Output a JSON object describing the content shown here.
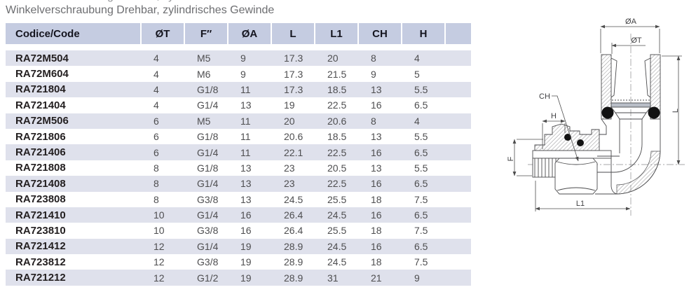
{
  "title": "Winkelverschraubung Drehbar, zylindrisches Gewinde",
  "table": {
    "headers": [
      "Codice/Code",
      "ØT",
      "F″",
      "ØA",
      "L",
      "L1",
      "CH",
      "H",
      ""
    ],
    "rows": [
      {
        "code": "RA72M504",
        "values": [
          "4",
          "M5",
          "9",
          "17.3",
          "20",
          "8",
          "4"
        ]
      },
      {
        "code": "RA72M604",
        "values": [
          "4",
          "M6",
          "9",
          "17.3",
          "21.5",
          "9",
          "5"
        ]
      },
      {
        "code": "RA721804",
        "values": [
          "4",
          "G1/8",
          "11",
          "17.3",
          "18.5",
          "13",
          "5.5"
        ]
      },
      {
        "code": "RA721404",
        "values": [
          "4",
          "G1/4",
          "13",
          "19",
          "22.5",
          "16",
          "6.5"
        ]
      },
      {
        "code": "RA72M506",
        "values": [
          "6",
          "M5",
          "11",
          "20",
          "20.6",
          "8",
          "4"
        ]
      },
      {
        "code": "RA721806",
        "values": [
          "6",
          "G1/8",
          "11",
          "20.6",
          "18.5",
          "13",
          "5.5"
        ]
      },
      {
        "code": "RA721406",
        "values": [
          "6",
          "G1/4",
          "11",
          "22.1",
          "22.5",
          "16",
          "6.5"
        ]
      },
      {
        "code": "RA721808",
        "values": [
          "8",
          "G1/8",
          "13",
          "23",
          "20.5",
          "13",
          "5.5"
        ]
      },
      {
        "code": "RA721408",
        "values": [
          "8",
          "G1/4",
          "13",
          "23",
          "22.5",
          "16",
          "6.5"
        ]
      },
      {
        "code": "RA723808",
        "values": [
          "8",
          "G3/8",
          "13",
          "24.5",
          "25.5",
          "18",
          "7.5"
        ]
      },
      {
        "code": "RA721410",
        "values": [
          "10",
          "G1/4",
          "16",
          "26.4",
          "24.5",
          "16",
          "6.5"
        ]
      },
      {
        "code": "RA723810",
        "values": [
          "10",
          "G3/8",
          "16",
          "26.4",
          "25.5",
          "18",
          "7.5"
        ]
      },
      {
        "code": "RA721412",
        "values": [
          "12",
          "G1/4",
          "19",
          "28.9",
          "24.5",
          "16",
          "6.5"
        ]
      },
      {
        "code": "RA723812",
        "values": [
          "12",
          "G3/8",
          "19",
          "28.9",
          "24.5",
          "18",
          "7.5"
        ]
      },
      {
        "code": "RA721212",
        "values": [
          "12",
          "G1/2",
          "19",
          "28.9",
          "31",
          "21",
          "9"
        ]
      }
    ]
  },
  "diagram": {
    "labels": {
      "oa": "ØA",
      "ot": "ØT",
      "l": "L",
      "ch": "CH",
      "h": "H",
      "f": "F",
      "l1": "L1"
    }
  },
  "colors": {
    "header_bg": "#c5cce1",
    "row_stripe": "#dfe1ec",
    "title_text": "#6d6e71",
    "code_text": "#231f20",
    "value_text": "#4e4e50",
    "line": "#4d4d4d"
  }
}
